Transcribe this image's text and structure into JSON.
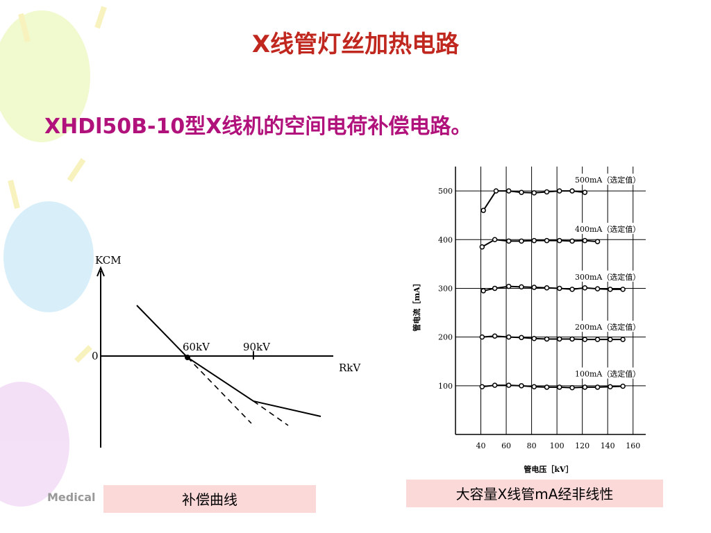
{
  "title": "X线管灯丝加热电路",
  "subtitle": "XHDl50B-10型X线机的空间电荷补偿电路。",
  "footer_brand": "Medical",
  "left_figure": {
    "y_label": "KCM",
    "x_label": "RkV",
    "zero_label": "0",
    "marker_1": "60kV",
    "marker_2": "90kV",
    "caption": "补偿曲线"
  },
  "right_caption": "大容量X线管mA经非线性",
  "chart_data": {
    "type": "line",
    "xlabel": "管电压［kV］",
    "ylabel": "管电流［mA］",
    "xlim": [
      20,
      170
    ],
    "ylim": [
      0,
      550
    ],
    "xticks": [
      40,
      60,
      80,
      100,
      120,
      140,
      160
    ],
    "yticks": [
      100,
      200,
      300,
      400,
      500
    ],
    "grid": true,
    "series": [
      {
        "name": "500mA（选定值）",
        "color": "#000000",
        "x": [
          42,
          52,
          62,
          72,
          82,
          92,
          102,
          112,
          122
        ],
        "values": [
          460,
          500,
          500,
          497,
          496,
          498,
          500,
          500,
          497
        ]
      },
      {
        "name": "400mA（选定值）",
        "color": "#000000",
        "x": [
          41,
          51,
          62,
          72,
          82,
          92,
          102,
          112,
          122,
          132
        ],
        "values": [
          385,
          400,
          397,
          397,
          398,
          398,
          398,
          397,
          398,
          396
        ]
      },
      {
        "name": "300mA（选定值）",
        "color": "#000000",
        "x": [
          42,
          51,
          62,
          72,
          82,
          92,
          102,
          112,
          122,
          132,
          142,
          152
        ],
        "values": [
          295,
          300,
          304,
          303,
          302,
          301,
          300,
          298,
          301,
          299,
          298,
          298
        ]
      },
      {
        "name": "200mA（选定值）",
        "color": "#000000",
        "x": [
          41,
          51,
          62,
          72,
          82,
          92,
          102,
          112,
          122,
          132,
          142,
          152
        ],
        "values": [
          200,
          202,
          200,
          199,
          197,
          196,
          196,
          196,
          195,
          195,
          195,
          195
        ]
      },
      {
        "name": "100mA（选定值）",
        "color": "#000000",
        "x": [
          41,
          51,
          62,
          72,
          82,
          92,
          102,
          112,
          122,
          132,
          142,
          152
        ],
        "values": [
          98,
          101,
          101,
          100,
          98,
          97,
          97,
          96,
          97,
          97,
          98,
          99
        ]
      }
    ]
  }
}
